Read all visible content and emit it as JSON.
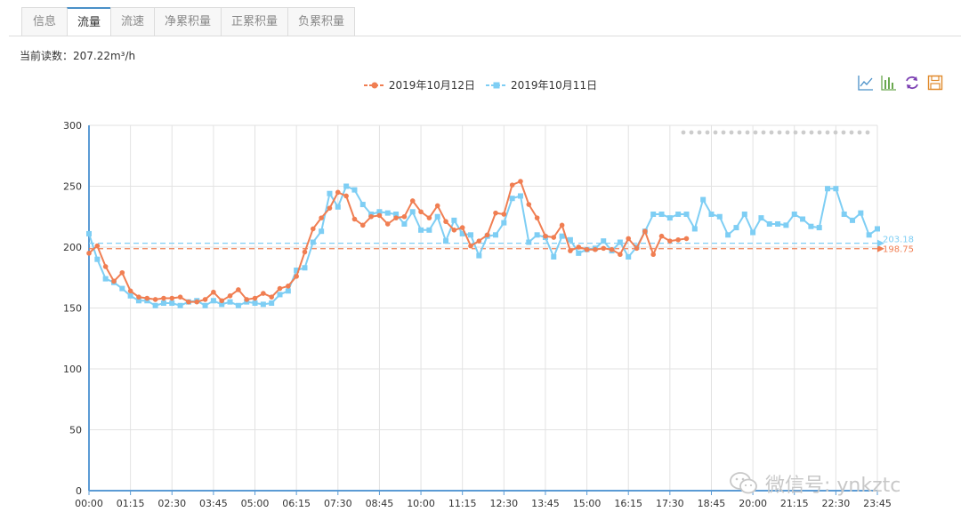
{
  "tabs": [
    {
      "label": "信息",
      "active": false
    },
    {
      "label": "流量",
      "active": true
    },
    {
      "label": "流速",
      "active": false
    },
    {
      "label": "净累积量",
      "active": false
    },
    {
      "label": "正累积量",
      "active": false
    },
    {
      "label": "负累积量",
      "active": false
    }
  ],
  "reading": "当前读数：207.22m³/h",
  "watermark": "微信号: ynkztc",
  "colors": {
    "series_orange": "#f07e52",
    "series_blue": "#7ecef4",
    "axis": "#5b9bd5",
    "grid": "#e0e0e0",
    "tab_accent": "#4a90c8"
  },
  "toolbox": [
    {
      "name": "line-chart-icon",
      "color": "#4a90c8"
    },
    {
      "name": "bar-chart-icon",
      "color": "#6aa84f"
    },
    {
      "name": "refresh-icon",
      "color": "#7b3fb2"
    },
    {
      "name": "save-icon",
      "color": "#e08a2c"
    }
  ],
  "chart_data": {
    "type": "line",
    "x_labels": [
      "00:00",
      "01:15",
      "02:30",
      "03:45",
      "05:00",
      "06:15",
      "07:30",
      "08:45",
      "10:00",
      "11:15",
      "12:30",
      "13:45",
      "15:00",
      "16:15",
      "17:30",
      "18:45",
      "20:00",
      "21:15",
      "22:30",
      "23:45"
    ],
    "ylim": [
      0,
      300
    ],
    "yticks": [
      0,
      50,
      100,
      150,
      200,
      250,
      300
    ],
    "grid": true,
    "legend_position": "top-center",
    "series": [
      {
        "name": "2019年10月12日",
        "color": "#f07e52",
        "marker": "circle",
        "markline_label": "198.75",
        "markline_value": 198.75,
        "values": [
          195,
          201,
          184,
          172,
          179,
          164,
          159,
          158,
          157,
          158,
          158,
          159,
          155,
          155,
          157,
          163,
          156,
          160,
          165,
          157,
          158,
          162,
          159,
          166,
          168,
          176,
          196,
          215,
          224,
          232,
          245,
          242,
          223,
          218,
          225,
          226,
          219,
          224,
          225,
          238,
          229,
          224,
          234,
          221,
          214,
          216,
          201,
          205,
          210,
          228,
          227,
          251,
          254,
          235,
          224,
          209,
          208,
          218,
          197,
          200,
          198,
          198,
          199,
          198,
          194,
          207,
          199,
          213,
          194,
          209,
          205,
          206,
          207
        ]
      },
      {
        "name": "2019年10月11日",
        "color": "#7ecef4",
        "marker": "square",
        "markline_label": "203.18",
        "markline_value": 203.18,
        "values": [
          211,
          190,
          174,
          171,
          166,
          160,
          156,
          156,
          152,
          154,
          154,
          152,
          155,
          156,
          152,
          156,
          153,
          155,
          152,
          155,
          154,
          153,
          154,
          161,
          164,
          181,
          183,
          204,
          213,
          244,
          233,
          250,
          247,
          235,
          227,
          229,
          228,
          227,
          219,
          229,
          214,
          214,
          225,
          205,
          222,
          211,
          210,
          193,
          209,
          210,
          220,
          240,
          242,
          204,
          210,
          208,
          192,
          209,
          206,
          195,
          198,
          199,
          205,
          197,
          204,
          192,
          200,
          213,
          227,
          227,
          224,
          227,
          227,
          215,
          239,
          227,
          225,
          210,
          216,
          227,
          212,
          224,
          219,
          219,
          218,
          227,
          223,
          217,
          216,
          248,
          248,
          227,
          222,
          228,
          210,
          215
        ]
      }
    ]
  }
}
